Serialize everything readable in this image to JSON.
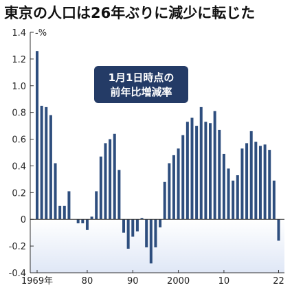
{
  "chart_data": {
    "type": "bar",
    "title": "東京の人口は26年ぶりに減少に転じた",
    "annotation": [
      "1月1日時点の",
      "前年比増減率"
    ],
    "y_unit": "%",
    "ylim": [
      -0.4,
      1.4
    ],
    "y_ticks": [
      "1.4",
      "1.2",
      "1.0",
      "0.8",
      "0.6",
      "0.4",
      "0.2",
      "0",
      "-0.2",
      "-0.4"
    ],
    "x_tick_labels": [
      "1969年",
      "80",
      "90",
      "2000",
      "10",
      "22"
    ],
    "x_tick_years": [
      1969,
      1980,
      1990,
      2000,
      2010,
      2022
    ],
    "bar_color": "#2e4e7e",
    "negative_band_color": "#dfe7f6",
    "annotation_box_color": "#243b66",
    "x": [
      1969,
      1970,
      1971,
      1972,
      1973,
      1974,
      1975,
      1976,
      1977,
      1978,
      1979,
      1980,
      1981,
      1982,
      1983,
      1984,
      1985,
      1986,
      1987,
      1988,
      1989,
      1990,
      1991,
      1992,
      1993,
      1994,
      1995,
      1996,
      1997,
      1998,
      1999,
      2000,
      2001,
      2002,
      2003,
      2004,
      2005,
      2006,
      2007,
      2008,
      2009,
      2010,
      2011,
      2012,
      2013,
      2014,
      2015,
      2016,
      2017,
      2018,
      2019,
      2020,
      2021,
      2022
    ],
    "values": [
      1.26,
      0.85,
      0.84,
      0.78,
      0.42,
      0.1,
      0.1,
      0.21,
      0.0,
      -0.03,
      -0.03,
      -0.08,
      0.02,
      0.21,
      0.47,
      0.57,
      0.6,
      0.64,
      0.37,
      -0.1,
      -0.22,
      -0.13,
      -0.09,
      0.01,
      -0.21,
      -0.33,
      -0.21,
      -0.06,
      0.28,
      0.42,
      0.48,
      0.53,
      0.63,
      0.73,
      0.76,
      0.7,
      0.84,
      0.73,
      0.72,
      0.81,
      0.67,
      0.49,
      0.38,
      0.29,
      0.33,
      0.53,
      0.57,
      0.66,
      0.58,
      0.55,
      0.56,
      0.52,
      0.29,
      -0.16
    ]
  }
}
